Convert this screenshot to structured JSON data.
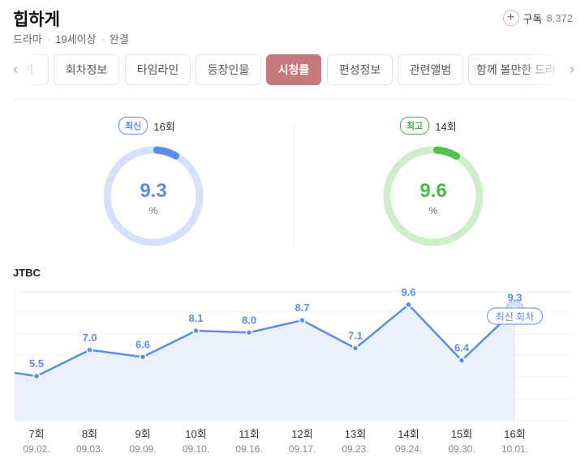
{
  "show": {
    "title": "힙하게",
    "genre": "드라마",
    "rating_age": "19세이상",
    "status": "완결",
    "subscribe_label": "구독",
    "subscribe_count": "8,372"
  },
  "tabs": [
    {
      "label": "기",
      "active": false
    },
    {
      "label": "회차정보",
      "active": false
    },
    {
      "label": "타임라인",
      "active": false
    },
    {
      "label": "등장인물",
      "active": false
    },
    {
      "label": "시청률",
      "active": true
    },
    {
      "label": "편성정보",
      "active": false
    },
    {
      "label": "관련앨범",
      "active": false
    },
    {
      "label": "함께 볼만한 드라",
      "active": false
    }
  ],
  "latest": {
    "badge": "최신",
    "episode": "16회",
    "value": "9.3",
    "unit": "%",
    "fraction": 0.093,
    "color": "#5b8de8",
    "track_color": "#d4e1f8"
  },
  "highest": {
    "badge": "최고",
    "episode": "14회",
    "value": "9.6",
    "unit": "%",
    "fraction": 0.096,
    "color": "#55c04e",
    "track_color": "#cfedca"
  },
  "channel": "JTBC",
  "chart_data": {
    "type": "line",
    "series": [
      {
        "values": [
          5.5,
          7.0,
          6.6,
          8.1,
          8.0,
          8.7,
          7.1,
          9.6,
          6.4,
          9.3
        ]
      }
    ],
    "categories": [
      "7회",
      "8회",
      "9회",
      "10회",
      "11회",
      "12회",
      "13회",
      "14회",
      "15회",
      "16회"
    ],
    "dates": [
      "09.02.",
      "09.03.",
      "09.09.",
      "09.10.",
      "09.16.",
      "09.17.",
      "09.23.",
      "09.24.",
      "09.30.",
      "10.01."
    ],
    "data_labels": [
      "5.5",
      "7.0",
      "6.6",
      "8.1",
      "8.0",
      "8.7",
      "7.1",
      "9.6",
      "6.4",
      "9.3"
    ],
    "annotation": "최신 회차",
    "line_color": "#5b8de8",
    "fill_color": "#eaf1fd"
  }
}
